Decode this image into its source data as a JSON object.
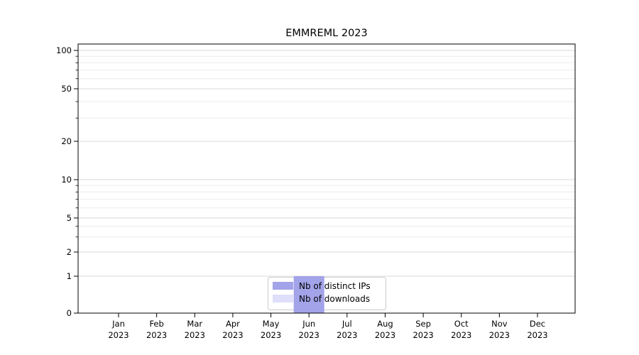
{
  "chart_data": {
    "type": "bar",
    "title": "EMMREML 2023",
    "categories": [
      "Jan 2023",
      "Feb 2023",
      "Mar 2023",
      "Apr 2023",
      "May 2023",
      "Jun 2023",
      "Jul 2023",
      "Aug 2023",
      "Sep 2023",
      "Oct 2023",
      "Nov 2023",
      "Dec 2023"
    ],
    "series": [
      {
        "name": "Nb of distinct IPs",
        "color": "#a3a3e9",
        "values": [
          0,
          0,
          0,
          0,
          0,
          1,
          0,
          0,
          0,
          0,
          0,
          0
        ]
      },
      {
        "name": "Nb of downloads",
        "color": "#dfdffb",
        "values": [
          0,
          0,
          0,
          0,
          0,
          1,
          0,
          0,
          0,
          0,
          0,
          0
        ]
      }
    ],
    "xlabel": "",
    "ylabel": "",
    "scale": "symlog",
    "ylim": [
      0,
      110
    ],
    "yticks": [
      0,
      1,
      2,
      5,
      10,
      20,
      50,
      100
    ],
    "minor_yticks": [
      3,
      4,
      6,
      7,
      8,
      9,
      30,
      40,
      60,
      70,
      80,
      90
    ],
    "grid": true,
    "legend_position": "bottom-center",
    "colors": {
      "grid_major": "#d8d8d8",
      "grid_minor": "#ececec",
      "axis": "#000000",
      "background": "#ffffff",
      "legend_border": "#cccccc"
    }
  }
}
